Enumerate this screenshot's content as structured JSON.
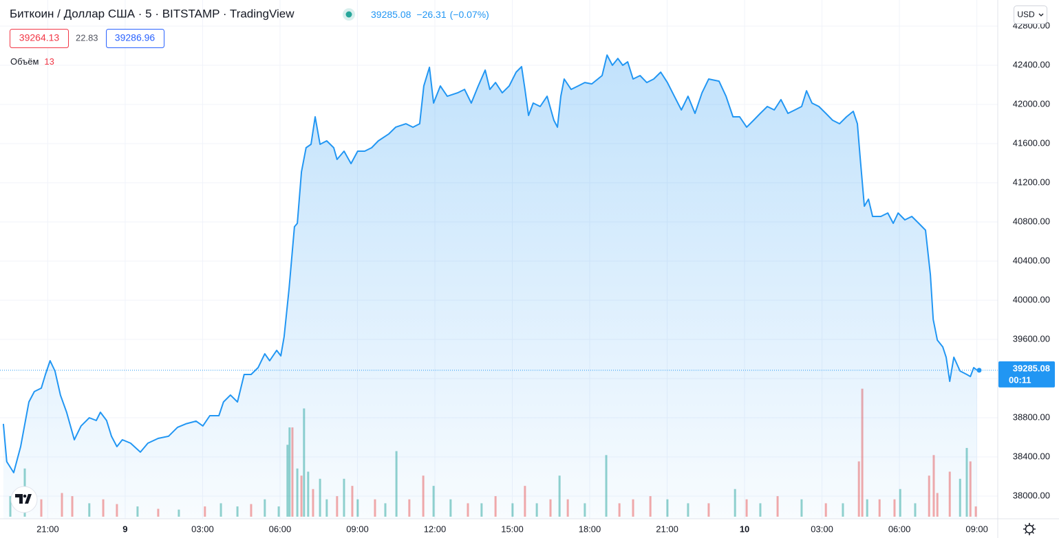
{
  "chart_data": {
    "type": "area",
    "title": "Биткоин / Доллар США · 5 · BITSTAMP · TradingView",
    "last_price": 39285.08,
    "change": {
      "value": -26.31,
      "label": "−26.31"
    },
    "change_pct": {
      "value": -0.07,
      "label": "(−0.07%)"
    },
    "bid": 39264.13,
    "spread": 22.83,
    "ask": 39286.96,
    "volume_label": "Объём",
    "currency": "USD",
    "countdown": "00:11",
    "color": "#2196f3",
    "x": [
      -4.72,
      -4.59,
      -4.32,
      -4.05,
      -3.73,
      -3.52,
      -3.25,
      -3.09,
      -2.91,
      -2.72,
      -2.51,
      -2.27,
      -1.97,
      -1.71,
      -1.39,
      -1.12,
      -0.96,
      -0.72,
      -0.53,
      -0.32,
      -0.11,
      0.21,
      0.59,
      0.88,
      1.28,
      1.68,
      2.03,
      2.35,
      2.75,
      3.01,
      3.28,
      3.63,
      3.81,
      4.08,
      4.35,
      4.61,
      4.88,
      5.15,
      5.41,
      5.6,
      5.87,
      6.03,
      6.16,
      6.35,
      6.56,
      6.67,
      6.83,
      7.01,
      7.2,
      7.36,
      7.55,
      7.81,
      8.08,
      8.21,
      8.48,
      8.75,
      9.01,
      9.28,
      9.55,
      9.81,
      10.21,
      10.48,
      10.88,
      11.15,
      11.41,
      11.57,
      11.79,
      11.95,
      12.21,
      12.48,
      12.88,
      13.15,
      13.41,
      13.68,
      13.95,
      14.13,
      14.35,
      14.61,
      14.88,
      15.15,
      15.36,
      15.49,
      15.63,
      15.81,
      16.08,
      16.35,
      16.61,
      16.75,
      16.88,
      17.01,
      17.28,
      17.55,
      17.81,
      18.08,
      18.48,
      18.67,
      18.88,
      19.09,
      19.28,
      19.47,
      19.68,
      19.95,
      20.21,
      20.48,
      20.75,
      21.01,
      21.28,
      21.55,
      21.81,
      22.08,
      22.35,
      22.61,
      23.01,
      23.28,
      23.55,
      23.81,
      24.08,
      24.35,
      24.61,
      24.88,
      25.15,
      25.41,
      25.68,
      25.95,
      26.21,
      26.4,
      26.61,
      26.88,
      27.15,
      27.41,
      27.68,
      27.95,
      28.21,
      28.37,
      28.48,
      28.64,
      28.8,
      28.96,
      29.28,
      29.55,
      29.76,
      29.95,
      30.21,
      30.48,
      30.75,
      31.01,
      31.2,
      31.31,
      31.47,
      31.68,
      31.81,
      31.95,
      32.11,
      32.35,
      32.61,
      32.75,
      32.88,
      33.01
    ],
    "values": [
      38737,
      38351,
      38239,
      38505,
      38961,
      39067,
      39102,
      39242,
      39382,
      39277,
      39032,
      38856,
      38575,
      38716,
      38800,
      38772,
      38856,
      38772,
      38611,
      38505,
      38575,
      38540,
      38449,
      38540,
      38589,
      38611,
      38702,
      38737,
      38765,
      38716,
      38821,
      38821,
      38961,
      39032,
      38961,
      39242,
      39242,
      39312,
      39453,
      39382,
      39488,
      39432,
      39628,
      40119,
      40751,
      40786,
      41312,
      41558,
      41593,
      41874,
      41593,
      41628,
      41558,
      41439,
      41523,
      41396,
      41523,
      41523,
      41558,
      41628,
      41698,
      41768,
      41803,
      41768,
      41803,
      42189,
      42379,
      42014,
      42189,
      42084,
      42119,
      42154,
      42014,
      42189,
      42351,
      42154,
      42224,
      42119,
      42189,
      42330,
      42386,
      42154,
      41888,
      42014,
      41979,
      42084,
      41839,
      41768,
      42084,
      42260,
      42154,
      42189,
      42224,
      42210,
      42295,
      42505,
      42400,
      42470,
      42400,
      42435,
      42260,
      42295,
      42224,
      42260,
      42330,
      42224,
      42084,
      41944,
      42084,
      41909,
      42119,
      42260,
      42238,
      42084,
      41874,
      41874,
      41768,
      41839,
      41909,
      41979,
      41944,
      42049,
      41909,
      41944,
      41979,
      42140,
      42014,
      41979,
      41909,
      41839,
      41803,
      41874,
      41930,
      41803,
      41453,
      40961,
      41032,
      40856,
      40856,
      40891,
      40786,
      40891,
      40821,
      40856,
      40786,
      40716,
      40260,
      39804,
      39593,
      39523,
      39418,
      39172,
      39418,
      39277,
      39242,
      39221,
      39312,
      39285
    ],
    "xlim": [
      -4.85,
      33.81
    ],
    "ylim": [
      37768,
      43067
    ],
    "xticks": [
      {
        "value": -3,
        "label": "21:00"
      },
      {
        "value": 0,
        "label": "9"
      },
      {
        "value": 3,
        "label": "03:00"
      },
      {
        "value": 6,
        "label": "06:00"
      },
      {
        "value": 9,
        "label": "09:00"
      },
      {
        "value": 12,
        "label": "12:00"
      },
      {
        "value": 15,
        "label": "15:00"
      },
      {
        "value": 18,
        "label": "18:00"
      },
      {
        "value": 21,
        "label": "21:00"
      },
      {
        "value": 24,
        "label": "10"
      },
      {
        "value": 27,
        "label": "03:00"
      },
      {
        "value": 30,
        "label": "06:00"
      },
      {
        "value": 33,
        "label": "09:00"
      }
    ],
    "yticks": [
      {
        "value": 38000,
        "label": "38000.00"
      },
      {
        "value": 38400,
        "label": "38400.00"
      },
      {
        "value": 38800,
        "label": "38800.00"
      },
      {
        "value": 39200,
        "label": "39200.00"
      },
      {
        "value": 39600,
        "label": "39600.00"
      },
      {
        "value": 40000,
        "label": "40000.00"
      },
      {
        "value": 40400,
        "label": "40400.00"
      },
      {
        "value": 40800,
        "label": "40800.00"
      },
      {
        "value": 41200,
        "label": "41200.00"
      },
      {
        "value": 41600,
        "label": "41600.00"
      },
      {
        "value": 42000,
        "label": "42000.00"
      },
      {
        "value": 42400,
        "label": "42400.00"
      },
      {
        "value": 42800,
        "label": "42800.00"
      }
    ],
    "grid": true,
    "volume": {
      "up_color": "rgba(38,166,154,0.5)",
      "down_color": "rgba(239,83,80,0.5)",
      "vlim": [
        0,
        200
      ],
      "x": [
        -3.89,
        -4.45,
        -3.25,
        -2.45,
        -2.05,
        -1.39,
        -0.85,
        -0.32,
        0.48,
        1.28,
        2.08,
        3.09,
        3.71,
        4.35,
        4.88,
        5.41,
        5.95,
        6.29,
        6.37,
        6.48,
        6.67,
        6.83,
        6.93,
        7.09,
        7.28,
        7.55,
        7.81,
        8.21,
        8.48,
        8.8,
        9.01,
        9.68,
        10.08,
        10.51,
        11.01,
        11.55,
        11.95,
        12.61,
        13.28,
        13.81,
        14.35,
        15.01,
        15.49,
        15.95,
        16.48,
        16.83,
        17.15,
        17.81,
        18.64,
        19.15,
        19.68,
        20.35,
        21.01,
        21.81,
        22.61,
        23.63,
        24.08,
        24.61,
        25.28,
        26.21,
        27.15,
        27.81,
        28.43,
        28.56,
        28.75,
        29.23,
        29.81,
        30.03,
        30.61,
        31.15,
        31.33,
        31.47,
        31.95,
        32.35,
        32.61,
        32.75,
        32.96
      ],
      "values": [
        61,
        26,
        22,
        30,
        26,
        17,
        22,
        16,
        13,
        10,
        9,
        13,
        17,
        13,
        16,
        22,
        13,
        91,
        113,
        113,
        61,
        52,
        137,
        57,
        35,
        48,
        22,
        26,
        48,
        39,
        22,
        22,
        17,
        83,
        22,
        52,
        39,
        22,
        17,
        17,
        26,
        17,
        39,
        17,
        22,
        52,
        22,
        17,
        78,
        17,
        22,
        26,
        22,
        17,
        17,
        35,
        22,
        17,
        26,
        22,
        17,
        17,
        70,
        162,
        22,
        22,
        22,
        35,
        17,
        52,
        78,
        30,
        57,
        48,
        87,
        70,
        13
      ],
      "rising": [
        true,
        true,
        false,
        false,
        false,
        true,
        false,
        false,
        true,
        false,
        true,
        false,
        true,
        true,
        false,
        true,
        true,
        true,
        true,
        false,
        true,
        false,
        true,
        true,
        false,
        true,
        true,
        false,
        true,
        false,
        true,
        false,
        true,
        true,
        false,
        false,
        true,
        true,
        false,
        true,
        false,
        true,
        false,
        true,
        false,
        true,
        false,
        true,
        true,
        false,
        false,
        false,
        true,
        true,
        false,
        true,
        false,
        true,
        false,
        true,
        false,
        true,
        false,
        false,
        true,
        false,
        false,
        true,
        true,
        false,
        false,
        false,
        false,
        true,
        true,
        false,
        false
      ]
    }
  }
}
